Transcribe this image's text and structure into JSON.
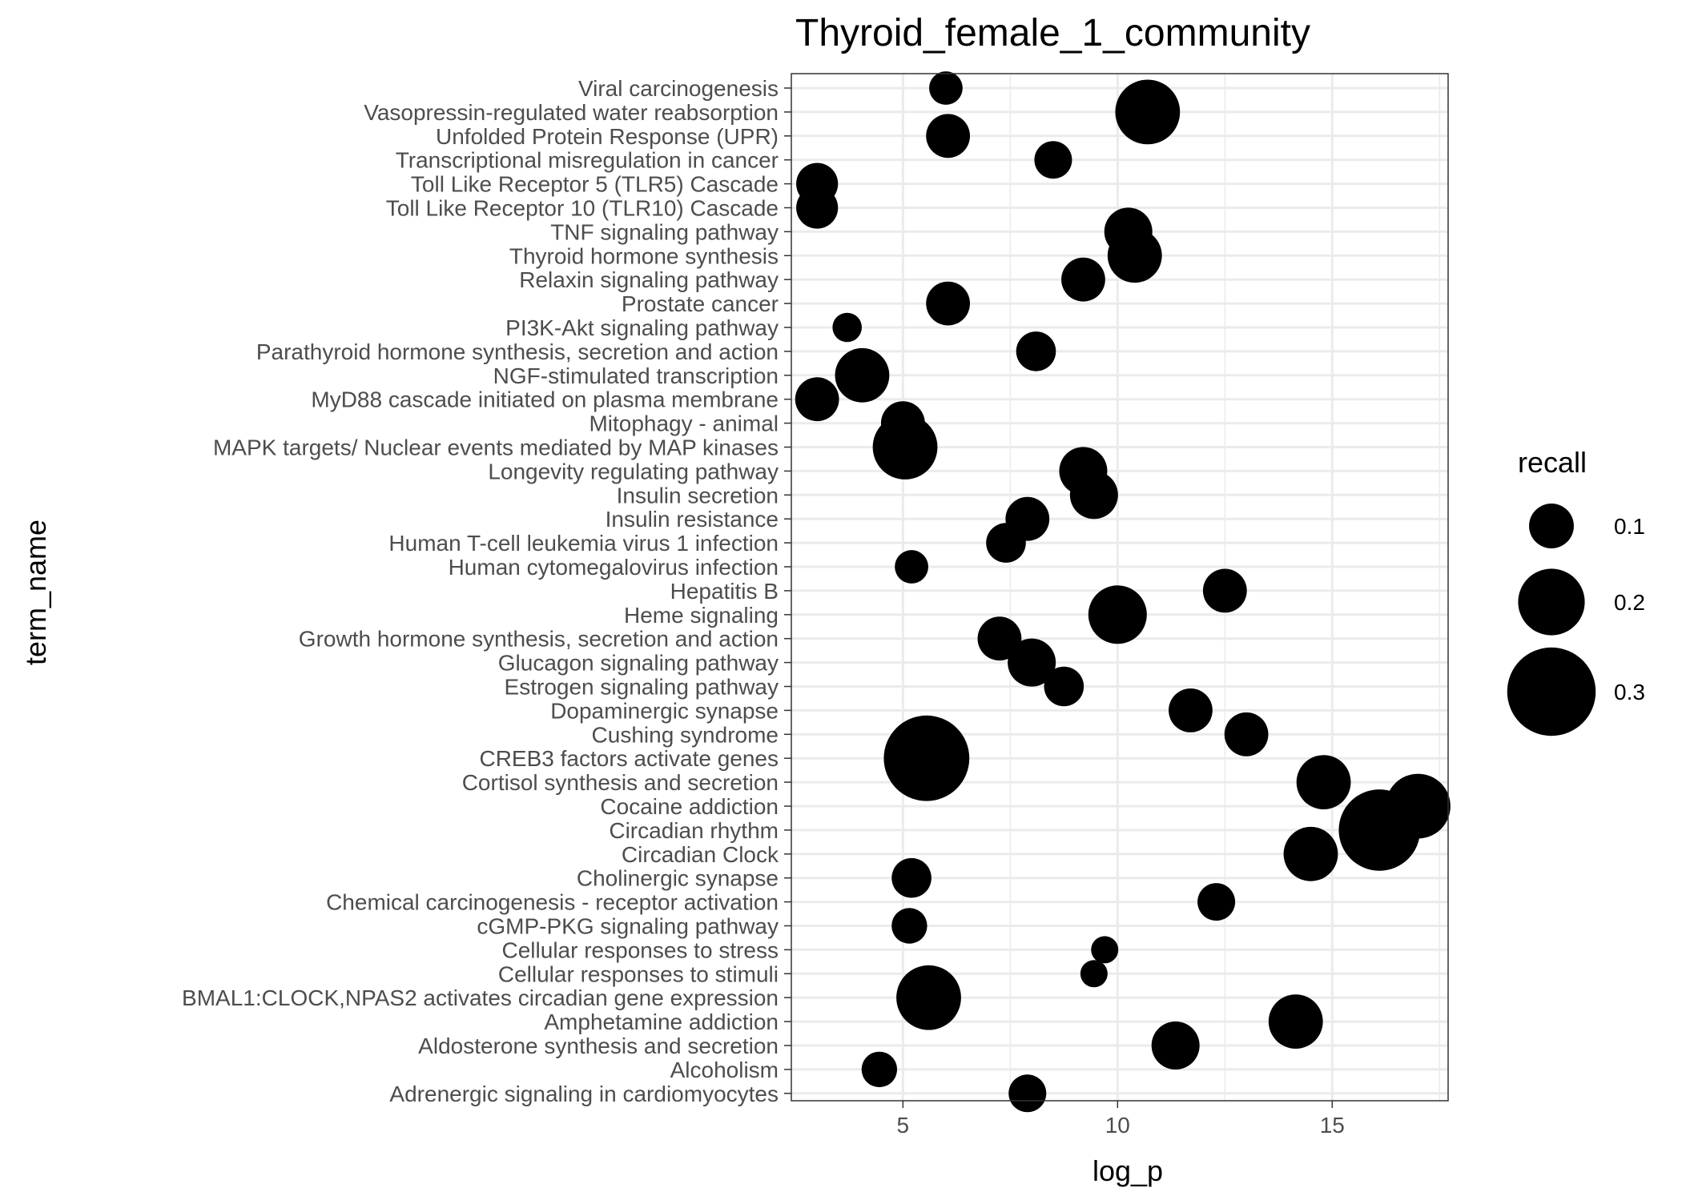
{
  "chart_data": {
    "type": "scatter",
    "title": "Thyroid_female_1_community",
    "xlabel": "log_p",
    "ylabel": "term_name",
    "xlim": [
      2.4,
      17.7
    ],
    "x_ticks": [
      5,
      10,
      15
    ],
    "grid": true,
    "legend_position": "right",
    "colors": {
      "point": "#000000",
      "grid": "#ebebeb",
      "panel_border": "#333333",
      "tick_text": "#4d4d4d"
    },
    "size_legend": {
      "title": "recall",
      "entries": [
        {
          "label": "0.1",
          "value": 0.1
        },
        {
          "label": "0.2",
          "value": 0.2
        },
        {
          "label": "0.3",
          "value": 0.3
        }
      ]
    },
    "points": [
      {
        "term": "Viral carcinogenesis",
        "log_p": 6.0,
        "recall": 0.1
      },
      {
        "term": "Vasopressin-regulated water reabsorption",
        "log_p": 10.7,
        "recall": 0.25
      },
      {
        "term": "Unfolded Protein Response (UPR)",
        "log_p": 6.05,
        "recall": 0.15
      },
      {
        "term": "Transcriptional misregulation in cancer",
        "log_p": 8.5,
        "recall": 0.12
      },
      {
        "term": "Toll Like Receptor 5 (TLR5) Cascade",
        "log_p": 3.0,
        "recall": 0.14
      },
      {
        "term": "Toll Like Receptor 10 (TLR10) Cascade",
        "log_p": 3.0,
        "recall": 0.14
      },
      {
        "term": "TNF signaling pathway",
        "log_p": 10.25,
        "recall": 0.17
      },
      {
        "term": "Thyroid hormone synthesis",
        "log_p": 10.4,
        "recall": 0.2
      },
      {
        "term": "Relaxin signaling pathway",
        "log_p": 9.2,
        "recall": 0.15
      },
      {
        "term": "Prostate cancer",
        "log_p": 6.05,
        "recall": 0.15
      },
      {
        "term": "PI3K-Akt signaling pathway",
        "log_p": 3.7,
        "recall": 0.08
      },
      {
        "term": "Parathyroid hormone synthesis, secretion and action",
        "log_p": 8.1,
        "recall": 0.13
      },
      {
        "term": "NGF-stimulated transcription",
        "log_p": 4.05,
        "recall": 0.2
      },
      {
        "term": "MyD88 cascade initiated on plasma membrane",
        "log_p": 3.0,
        "recall": 0.15
      },
      {
        "term": "Mitophagy - animal",
        "log_p": 5.0,
        "recall": 0.15
      },
      {
        "term": "MAPK targets/ Nuclear events mediated by MAP kinases",
        "log_p": 5.05,
        "recall": 0.25
      },
      {
        "term": "Longevity regulating pathway",
        "log_p": 9.2,
        "recall": 0.17
      },
      {
        "term": "Insulin secretion",
        "log_p": 9.45,
        "recall": 0.17
      },
      {
        "term": "Insulin resistance",
        "log_p": 7.9,
        "recall": 0.15
      },
      {
        "term": "Human T-cell leukemia virus 1 infection",
        "log_p": 7.4,
        "recall": 0.13
      },
      {
        "term": "Human cytomegalovirus infection",
        "log_p": 5.2,
        "recall": 0.1
      },
      {
        "term": "Hepatitis B",
        "log_p": 12.5,
        "recall": 0.15
      },
      {
        "term": "Heme signaling",
        "log_p": 10.0,
        "recall": 0.22
      },
      {
        "term": "Growth hormone synthesis, secretion and action",
        "log_p": 7.25,
        "recall": 0.15
      },
      {
        "term": "Glucagon signaling pathway",
        "log_p": 8.0,
        "recall": 0.17
      },
      {
        "term": "Estrogen signaling pathway",
        "log_p": 8.75,
        "recall": 0.13
      },
      {
        "term": "Dopaminergic synapse",
        "log_p": 11.7,
        "recall": 0.15
      },
      {
        "term": "Cushing syndrome",
        "log_p": 13.0,
        "recall": 0.15
      },
      {
        "term": "CREB3 factors activate genes",
        "log_p": 5.55,
        "recall": 0.35
      },
      {
        "term": "Cortisol synthesis and secretion",
        "log_p": 14.8,
        "recall": 0.2
      },
      {
        "term": "Cocaine addiction",
        "log_p": 17.0,
        "recall": 0.25
      },
      {
        "term": "Circadian rhythm",
        "log_p": 16.1,
        "recall": 0.33
      },
      {
        "term": "Circadian Clock",
        "log_p": 14.5,
        "recall": 0.2
      },
      {
        "term": "Cholinergic synapse",
        "log_p": 5.2,
        "recall": 0.13
      },
      {
        "term": "Chemical carcinogenesis - receptor activation",
        "log_p": 12.3,
        "recall": 0.12
      },
      {
        "term": "cGMP-PKG signaling pathway",
        "log_p": 5.15,
        "recall": 0.11
      },
      {
        "term": "Cellular responses to stress",
        "log_p": 9.7,
        "recall": 0.07
      },
      {
        "term": "Cellular responses to stimuli",
        "log_p": 9.45,
        "recall": 0.07
      },
      {
        "term": "BMAL1:CLOCK,NPAS2 activates circadian gene expression",
        "log_p": 5.6,
        "recall": 0.25
      },
      {
        "term": "Amphetamine addiction",
        "log_p": 14.15,
        "recall": 0.2
      },
      {
        "term": "Aldosterone synthesis and secretion",
        "log_p": 11.35,
        "recall": 0.17
      },
      {
        "term": "Alcoholism",
        "log_p": 4.45,
        "recall": 0.11
      },
      {
        "term": "Adrenergic signaling in cardiomyocytes",
        "log_p": 7.9,
        "recall": 0.12
      }
    ]
  }
}
